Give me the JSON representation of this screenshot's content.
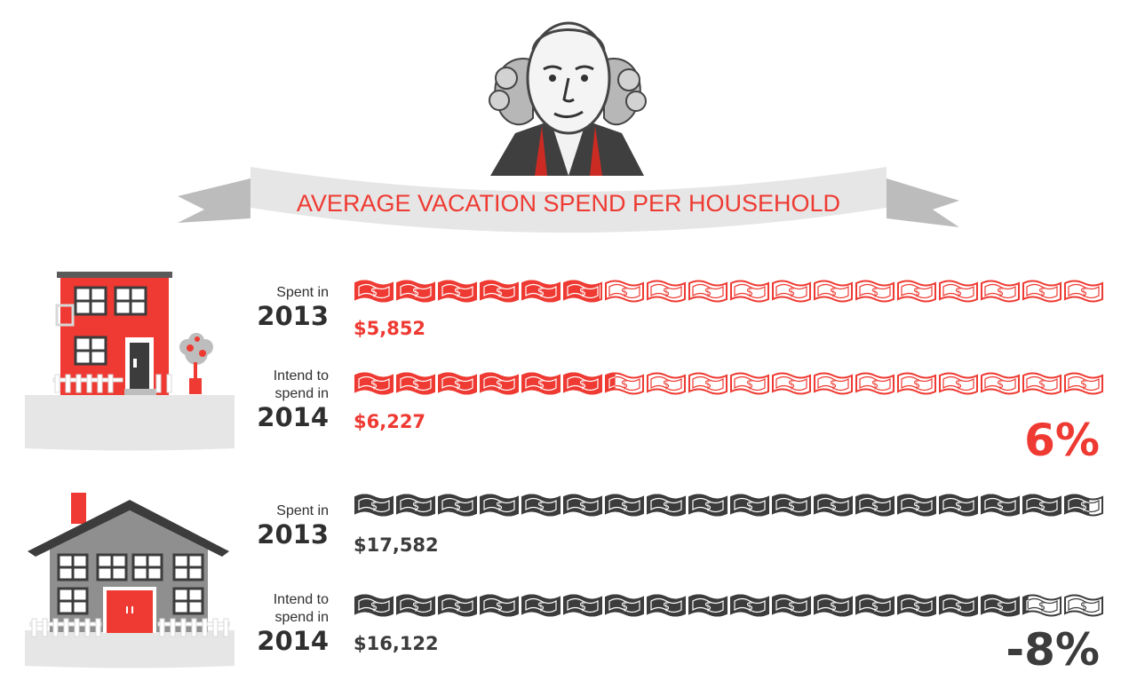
{
  "title": "AVERAGE VACATION SPEND PER HOUSEHOLD",
  "colors": {
    "red": "#ee3a32",
    "dark": "#3c3c3c",
    "banner": "#e6e6e6",
    "banner_fold": "#bcbcbc"
  },
  "icons": {
    "portrait": "george-washington-portrait",
    "bill": "dollar-bill-icon"
  },
  "households": [
    {
      "house": "townhouse-icon",
      "color": "#ee3a32",
      "bills_full": [
        5.852,
        6.227
      ],
      "rows": [
        {
          "label": "Spent in",
          "year": "2013",
          "amount": "$5,852"
        },
        {
          "label": "Intend to spend in",
          "year": "2014",
          "amount": "$6,227"
        }
      ],
      "change": "6%"
    },
    {
      "house": "suburban-house-icon",
      "color": "#3c3c3c",
      "bills_full": [
        17.582,
        16.122
      ],
      "rows": [
        {
          "label": "Spent in",
          "year": "2013",
          "amount": "$17,582"
        },
        {
          "label": "Intend to spend in",
          "year": "2014",
          "amount": "$16,122"
        }
      ],
      "change": "-8%"
    }
  ],
  "bills_total": 18
}
